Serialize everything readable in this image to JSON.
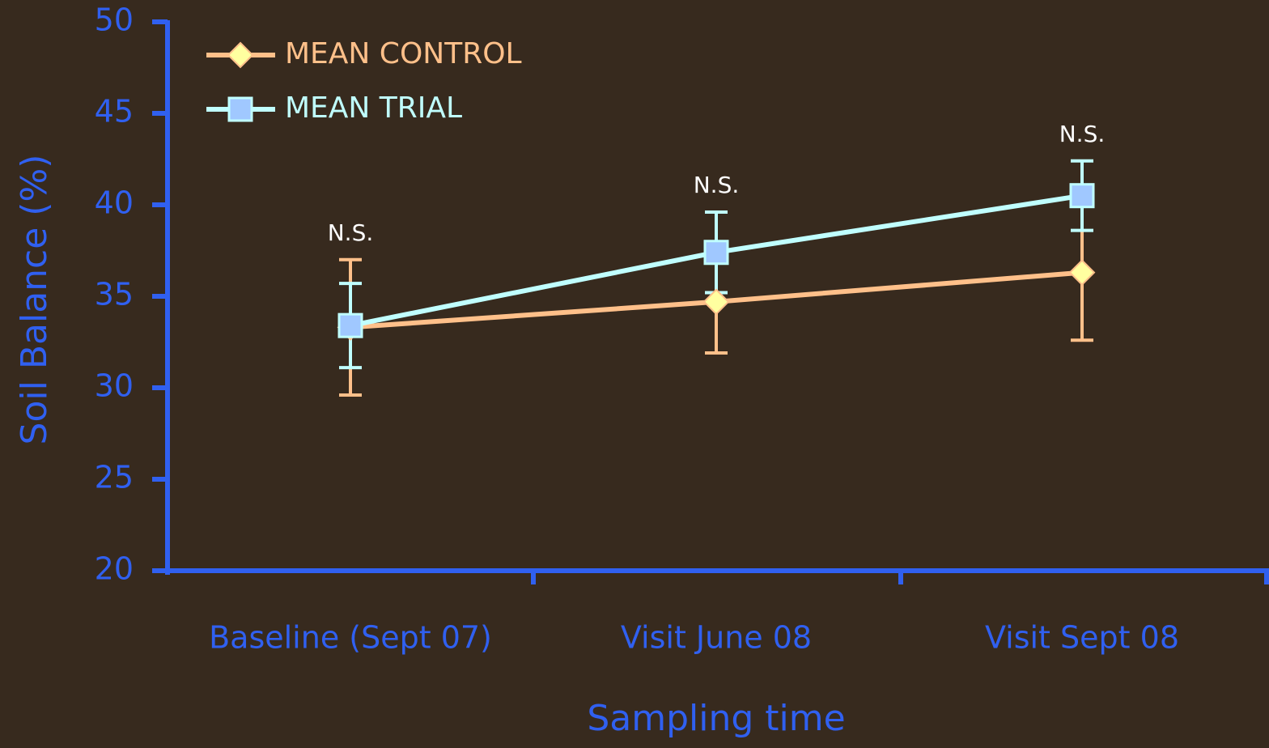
{
  "chart_data": {
    "type": "line",
    "xlabel": "Sampling time",
    "ylabel": "Soil Balance (%)",
    "categories": [
      "Baseline (Sept 07)",
      "Visit June 08",
      "Visit Sept 08"
    ],
    "series": [
      {
        "name": "MEAN CONTROL",
        "color": "#ffc08a",
        "marker": "diamond",
        "marker_color": "#ffffa0",
        "values": [
          33.3,
          34.7,
          36.3
        ],
        "errors": [
          3.7,
          2.8,
          3.7
        ]
      },
      {
        "name": "MEAN TRIAL",
        "color": "#c0ffff",
        "marker": "square",
        "marker_color": "#a0c8ff",
        "values": [
          33.4,
          37.4,
          40.5
        ],
        "errors": [
          2.3,
          2.2,
          1.9
        ]
      }
    ],
    "annotations": [
      "N.S.",
      "N.S.",
      "N.S."
    ],
    "ylim": [
      20,
      50
    ],
    "yticks": [
      20,
      25,
      30,
      35,
      40,
      45,
      50
    ],
    "legend": "upper left"
  }
}
